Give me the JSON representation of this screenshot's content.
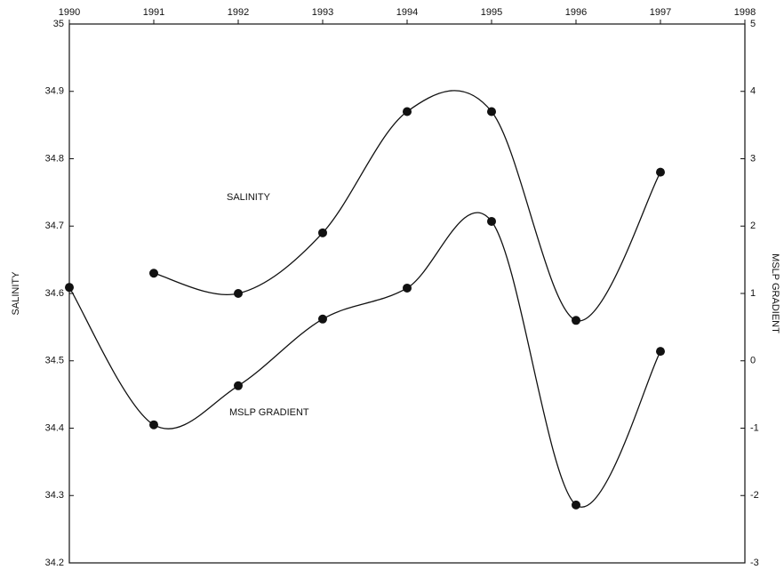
{
  "chart_data": {
    "type": "line",
    "x": [
      1990,
      1991,
      1992,
      1993,
      1994,
      1995,
      1996,
      1997
    ],
    "xlim": [
      1990,
      1998
    ],
    "xticks": [
      1990,
      1991,
      1992,
      1993,
      1994,
      1995,
      1996,
      1997,
      1998
    ],
    "ylabel": "SALINITY",
    "y2label": "MSLP GRADIENT",
    "ylim": [
      34.2,
      35
    ],
    "yticks": [
      34.2,
      34.3,
      34.4,
      34.5,
      34.6,
      34.7,
      34.8,
      34.9,
      35
    ],
    "y2lim": [
      -3,
      5
    ],
    "y2ticks": [
      -3,
      -2,
      -1,
      0,
      1,
      2,
      3,
      4,
      5
    ],
    "annotations": [
      "SALINITY",
      "MSLP GRADIENT"
    ],
    "series": [
      {
        "name": "SALINITY",
        "color": "#111111",
        "values": [
          null,
          34.63,
          34.6,
          34.69,
          34.87,
          34.87,
          34.56,
          34.78
        ]
      },
      {
        "name": "MSLP GRADIENT",
        "color": "#111111",
        "axis": "y2",
        "values": [
          1.09,
          -0.95,
          -0.37,
          0.62,
          1.08,
          2.07,
          -2.14,
          0.14
        ]
      }
    ]
  }
}
